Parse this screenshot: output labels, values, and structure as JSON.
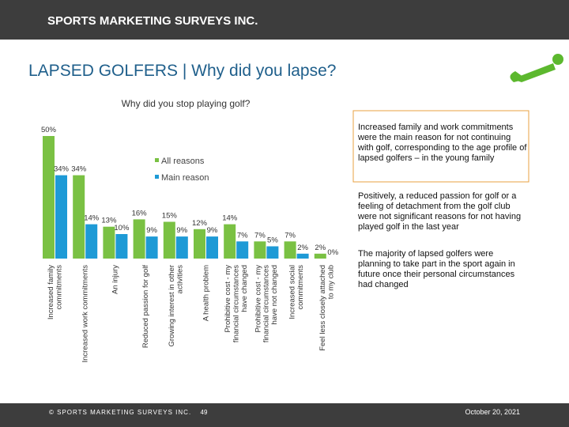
{
  "header": {
    "brand": "SPORTS MARKETING SURVEYS INC."
  },
  "chart_data": {
    "type": "bar",
    "title": "LAPSED GOLFERS | Why did you lapse?",
    "subtitle": "Why did you stop playing golf?",
    "categories": [
      "Increased family commitments",
      "Increased work commitments",
      "An injury",
      "Reduced passion for golf",
      "Growing interest in other activities",
      "A health problem",
      "Prohibitive cost - my financial circumstances have changed",
      "Prohibitive cost - my financial circumstances have not changed",
      "Increased social commitments",
      "Feel less closely attached to my club"
    ],
    "series": [
      {
        "name": "All reasons",
        "color": "#7ac143",
        "values": [
          50,
          34,
          13,
          16,
          15,
          12,
          14,
          7,
          7,
          2
        ],
        "value_labels": [
          "50%",
          "34%",
          "13%",
          "16%",
          "15%",
          "12%",
          "14%",
          "7%",
          "7%",
          "2%"
        ]
      },
      {
        "name": "Main reason",
        "color": "#1e9ad6",
        "values": [
          34,
          14,
          10,
          9,
          9,
          9,
          7,
          5,
          2,
          0
        ],
        "value_labels": [
          "34%",
          "14%",
          "10%",
          "9%",
          "9%",
          "9%",
          "7%",
          "5%",
          "2%",
          "0%"
        ]
      }
    ]
  },
  "notes": [
    "Increased family and work commitments were the main reason for not continuing with golf, corresponding to the age profile of lapsed golfers – in the young family",
    "Positively, a reduced passion for golf or a feeling of detachment from the golf club were not significant reasons for not having played golf in the last year",
    "The majority of lapsed golfers were planning to take part in the sport again in future once their personal circumstances had changed"
  ],
  "footer": {
    "copyright": "© SPORTS MARKETING SURVEYS INC.",
    "page": "49",
    "date": "October 20, 2021"
  }
}
